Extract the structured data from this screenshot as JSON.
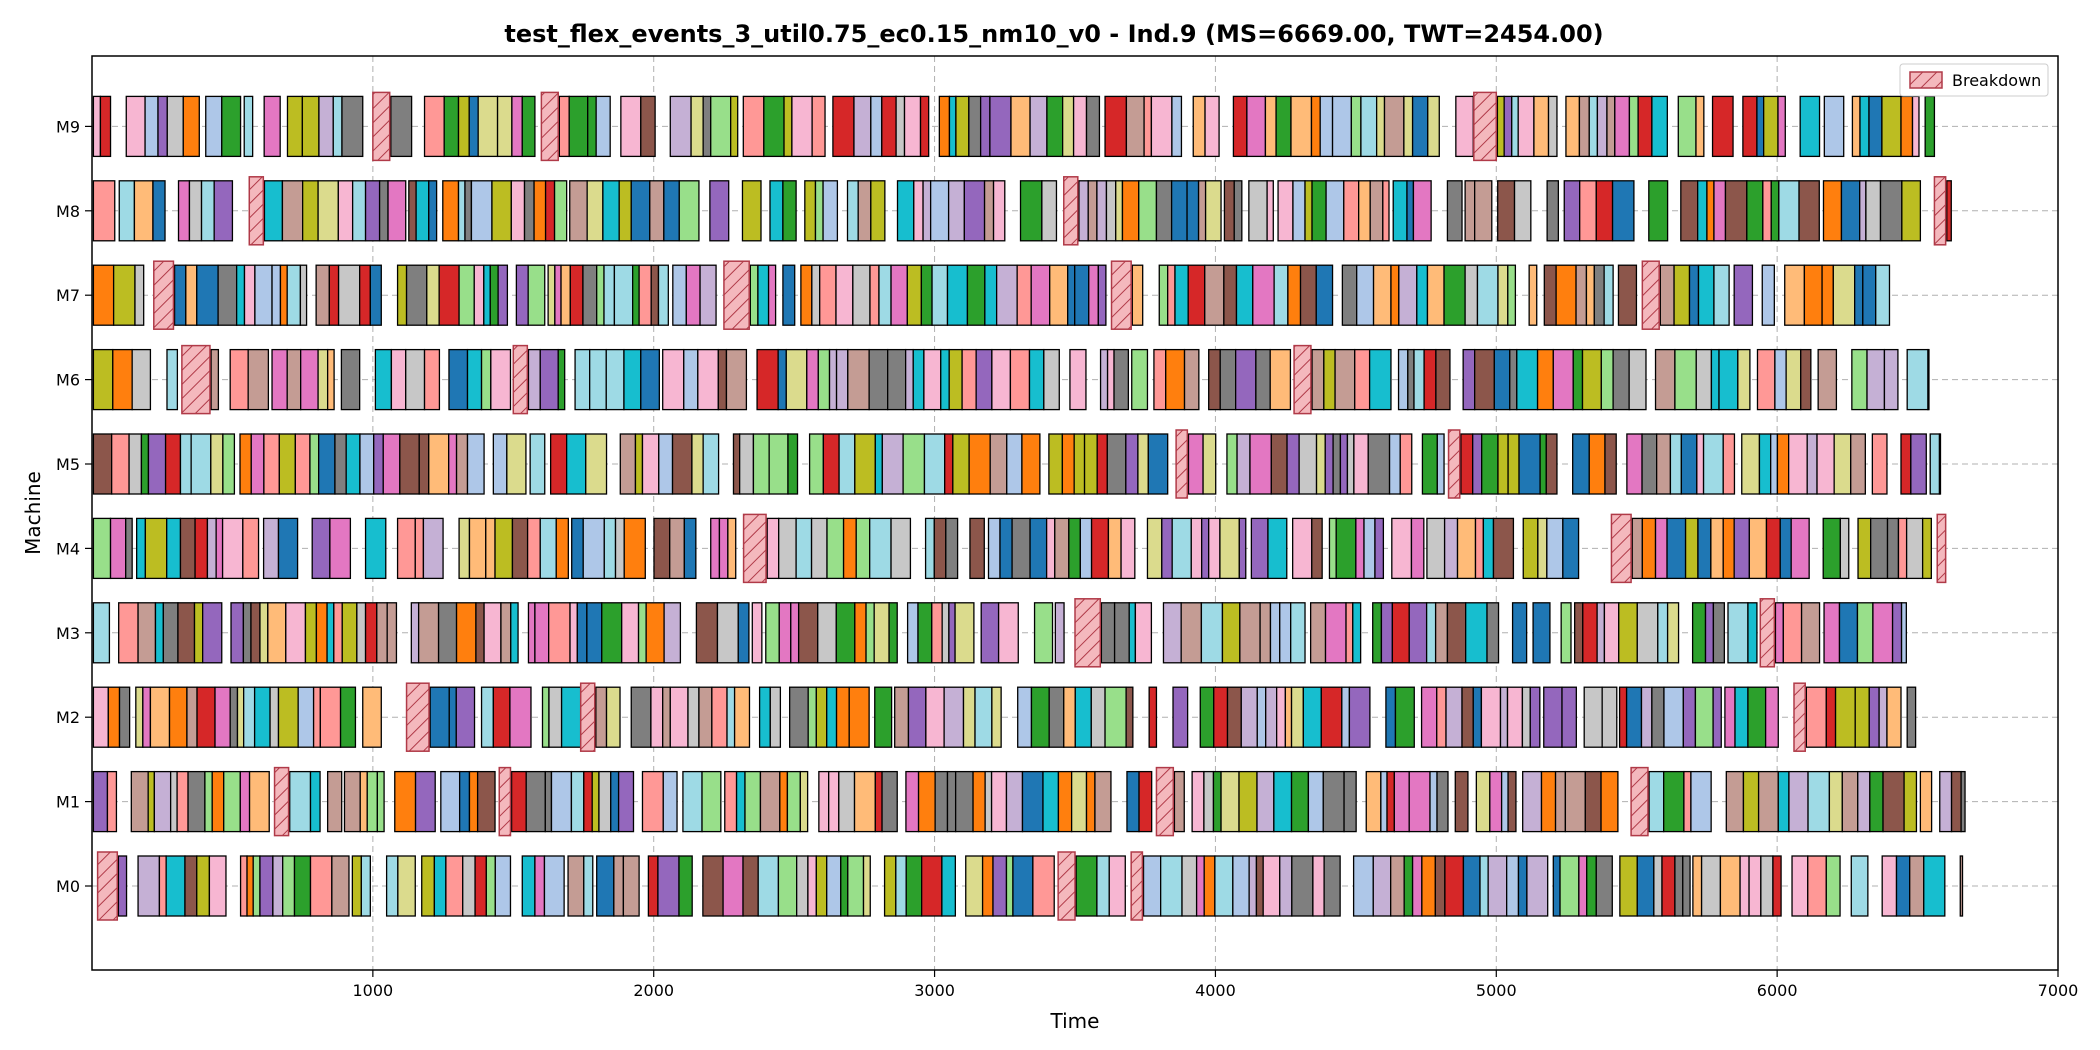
{
  "chart_data": {
    "type": "gantt",
    "title": "test_flex_events_3_util0.75_ec0.15_nm10_v0 - Ind.9 (MS=6669.00, TWT=2454.00)",
    "xlabel": "Time",
    "ylabel": "Machine",
    "xlim": [
      0,
      7000
    ],
    "xticks": [
      "1000",
      "2000",
      "3000",
      "4000",
      "5000",
      "6000",
      "7000"
    ],
    "machines": [
      "M0",
      "M1",
      "M2",
      "M3",
      "M4",
      "M5",
      "M6",
      "M7",
      "M8",
      "M9"
    ],
    "grid": "dashed",
    "legend": {
      "position": "top-right",
      "entries": [
        "Breakdown"
      ]
    },
    "colors": {
      "palette": [
        "#1f77b4",
        "#aec7e8",
        "#ff7f0e",
        "#ffbb78",
        "#2ca02c",
        "#98df8a",
        "#d62728",
        "#ff9896",
        "#9467bd",
        "#c5b0d5",
        "#8c564b",
        "#c49c94",
        "#e377c2",
        "#f7b6d2",
        "#7f7f7f",
        "#c7c7c7",
        "#bcbd22",
        "#dbdb8d",
        "#17becf",
        "#9edae5"
      ],
      "breakdown_fill": "#f4b8bd",
      "breakdown_edge": "#b03a48",
      "grid": "#b0b0b0"
    },
    "machine_spans": [
      {
        "machine": "M0",
        "start": 5,
        "end": 6660
      },
      {
        "machine": "M1",
        "start": 5,
        "end": 6669
      },
      {
        "machine": "M2",
        "start": 5,
        "end": 6520
      },
      {
        "machine": "M3",
        "start": 5,
        "end": 6460
      },
      {
        "machine": "M4",
        "start": 5,
        "end": 6600
      },
      {
        "machine": "M5",
        "start": 5,
        "end": 6580
      },
      {
        "machine": "M6",
        "start": 5,
        "end": 6540
      },
      {
        "machine": "M7",
        "start": 5,
        "end": 6400
      },
      {
        "machine": "M8",
        "start": 5,
        "end": 6620
      },
      {
        "machine": "M9",
        "start": 5,
        "end": 6560
      }
    ],
    "breakdowns": [
      {
        "machine": "M0",
        "start": 20,
        "end": 90
      },
      {
        "machine": "M0",
        "start": 3440,
        "end": 3500
      },
      {
        "machine": "M0",
        "start": 3700,
        "end": 3740
      },
      {
        "machine": "M1",
        "start": 650,
        "end": 700
      },
      {
        "machine": "M1",
        "start": 1450,
        "end": 1490
      },
      {
        "machine": "M1",
        "start": 3790,
        "end": 3850
      },
      {
        "machine": "M1",
        "start": 5480,
        "end": 5540
      },
      {
        "machine": "M2",
        "start": 1120,
        "end": 1200
      },
      {
        "machine": "M2",
        "start": 1740,
        "end": 1790
      },
      {
        "machine": "M2",
        "start": 6060,
        "end": 6100
      },
      {
        "machine": "M3",
        "start": 3500,
        "end": 3590
      },
      {
        "machine": "M3",
        "start": 5940,
        "end": 5990
      },
      {
        "machine": "M4",
        "start": 2320,
        "end": 2400
      },
      {
        "machine": "M4",
        "start": 5410,
        "end": 5480
      },
      {
        "machine": "M4",
        "start": 6570,
        "end": 6600
      },
      {
        "machine": "M5",
        "start": 3860,
        "end": 3900
      },
      {
        "machine": "M5",
        "start": 4830,
        "end": 4870
      },
      {
        "machine": "M6",
        "start": 320,
        "end": 420
      },
      {
        "machine": "M6",
        "start": 1500,
        "end": 1550
      },
      {
        "machine": "M6",
        "start": 4280,
        "end": 4340
      },
      {
        "machine": "M7",
        "start": 220,
        "end": 290
      },
      {
        "machine": "M7",
        "start": 2250,
        "end": 2340
      },
      {
        "machine": "M7",
        "start": 3630,
        "end": 3700
      },
      {
        "machine": "M7",
        "start": 5520,
        "end": 5580
      },
      {
        "machine": "M8",
        "start": 560,
        "end": 610
      },
      {
        "machine": "M8",
        "start": 3460,
        "end": 3510
      },
      {
        "machine": "M8",
        "start": 6560,
        "end": 6600
      },
      {
        "machine": "M9",
        "start": 1000,
        "end": 1060
      },
      {
        "machine": "M9",
        "start": 1600,
        "end": 1660
      },
      {
        "machine": "M9",
        "start": 4920,
        "end": 5000
      }
    ]
  },
  "legend_label": "Breakdown"
}
